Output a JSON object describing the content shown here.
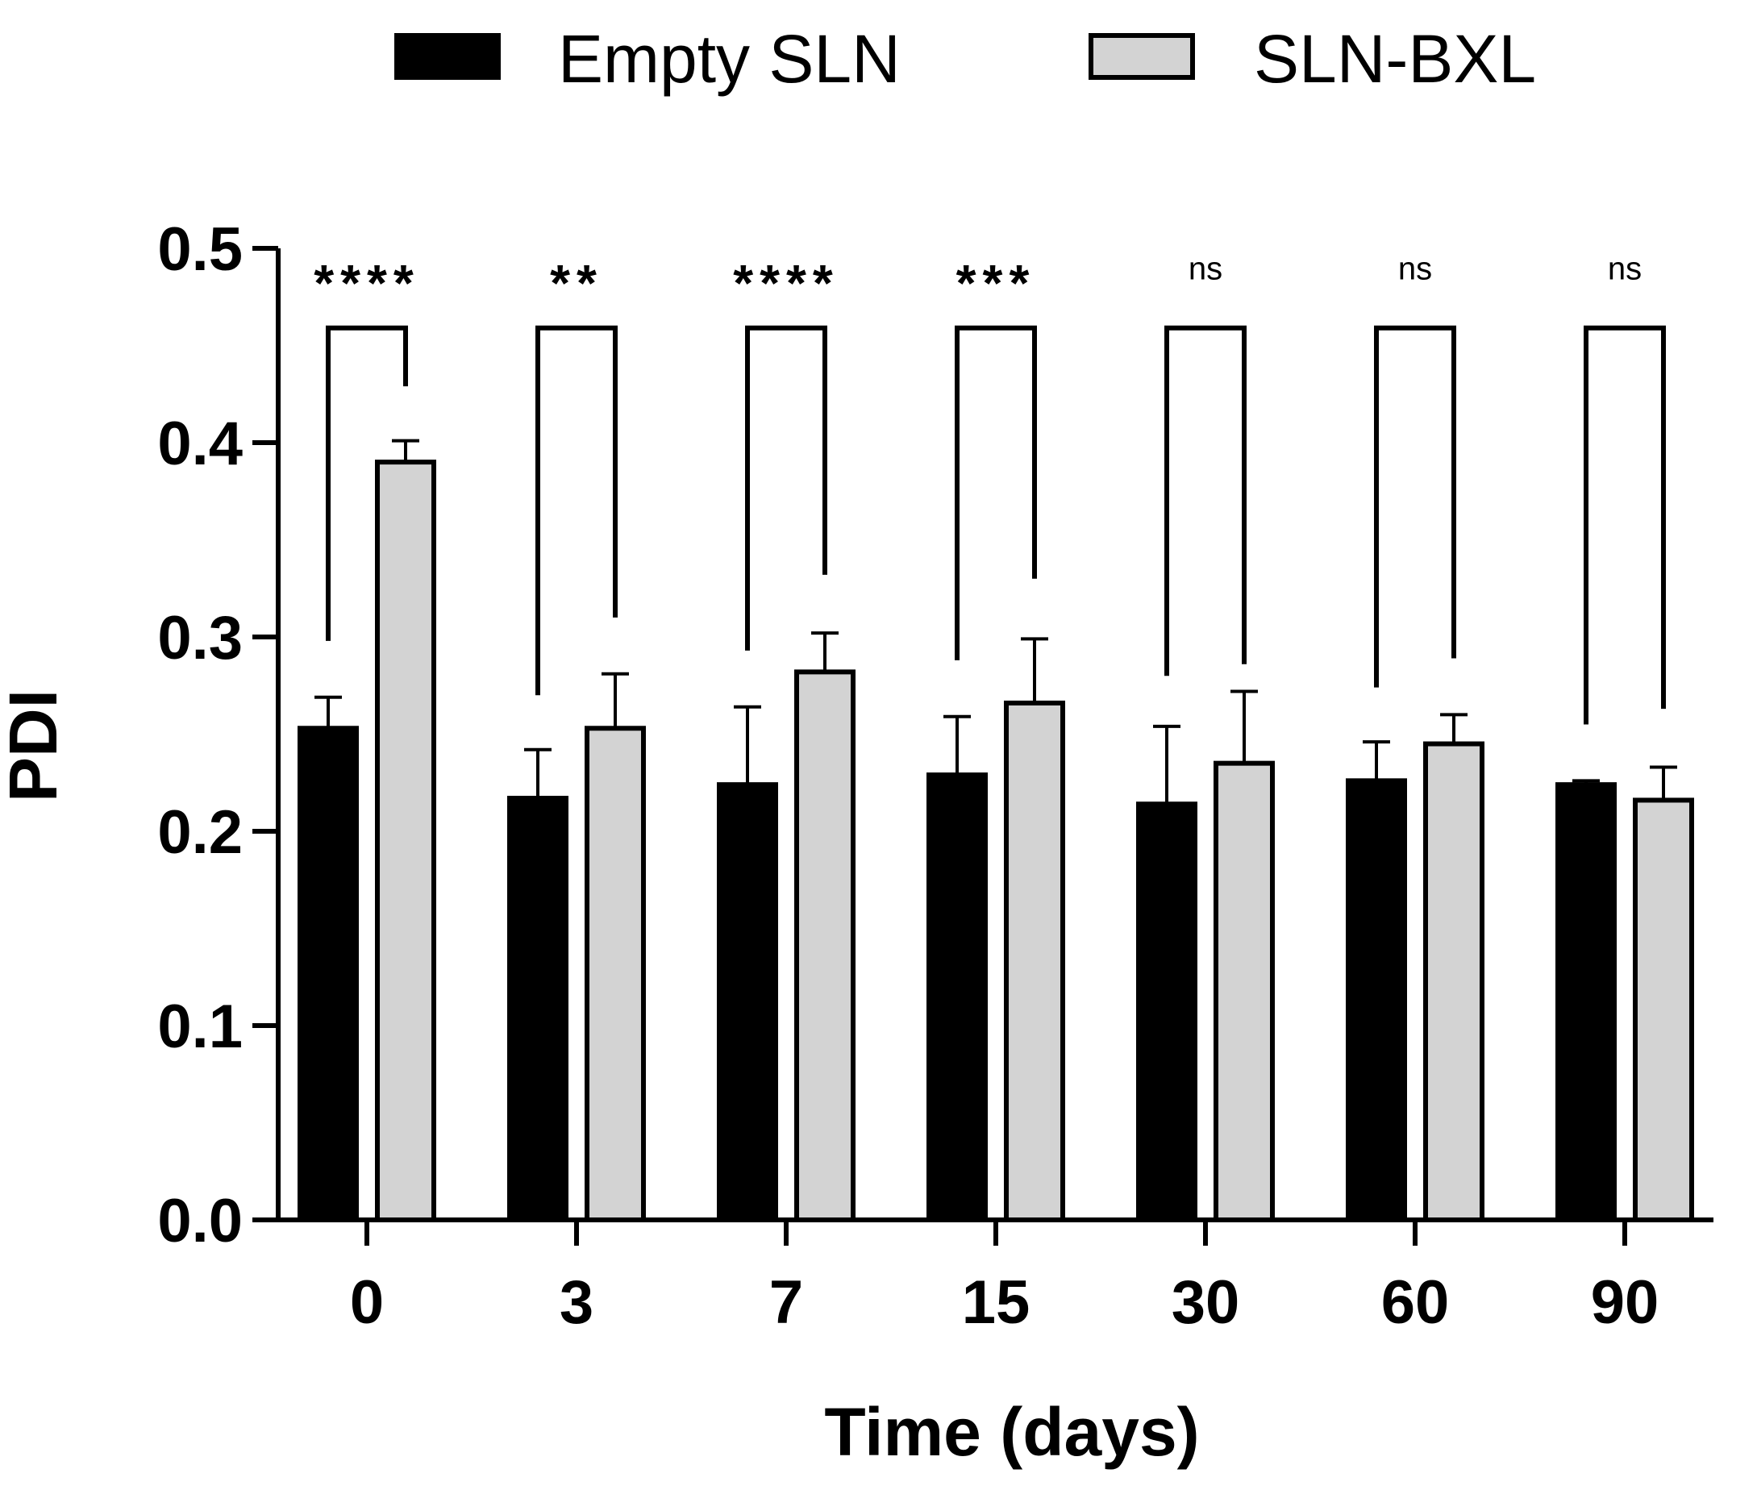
{
  "chart_data": {
    "type": "bar",
    "title": "",
    "xlabel": "Time (days)",
    "ylabel": "PDI",
    "ylim": [
      0,
      0.5
    ],
    "yticks": [
      "0.0",
      "0.1",
      "0.2",
      "0.3",
      "0.4",
      "0.5"
    ],
    "categories": [
      "0",
      "3",
      "7",
      "15",
      "30",
      "60",
      "90"
    ],
    "series": [
      {
        "name": "Empty SLN",
        "color": "#000000",
        "values": [
          0.253,
          0.217,
          0.224,
          0.229,
          0.214,
          0.226,
          0.224
        ],
        "errors": [
          0.016,
          0.025,
          0.04,
          0.03,
          0.04,
          0.02,
          0.002
        ]
      },
      {
        "name": "SLN-BXL",
        "color": "#d3d3d3",
        "values": [
          0.39,
          0.253,
          0.282,
          0.266,
          0.235,
          0.245,
          0.216
        ],
        "errors": [
          0.011,
          0.028,
          0.02,
          0.033,
          0.037,
          0.015,
          0.017
        ]
      }
    ],
    "significance": [
      {
        "label": "****",
        "left_y": 0.298,
        "right_y": 0.429
      },
      {
        "label": "**",
        "left_y": 0.27,
        "right_y": 0.31
      },
      {
        "label": "****",
        "left_y": 0.293,
        "right_y": 0.332
      },
      {
        "label": "***",
        "left_y": 0.288,
        "right_y": 0.33
      },
      {
        "label": "ns",
        "left_y": 0.28,
        "right_y": 0.286
      },
      {
        "label": "ns",
        "left_y": 0.274,
        "right_y": 0.289
      },
      {
        "label": "ns",
        "left_y": 0.255,
        "right_y": 0.263
      }
    ],
    "legend_position": "top-center",
    "grid": false
  }
}
